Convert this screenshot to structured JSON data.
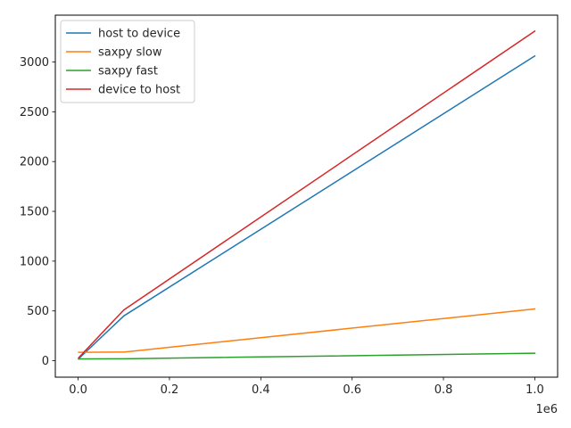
{
  "chart_data": {
    "type": "line",
    "title": "",
    "xlabel": "",
    "ylabel": "",
    "x_offset_label": "1e6",
    "xlim": [
      -50000,
      1050000
    ],
    "ylim": [
      -165,
      3470
    ],
    "x_ticks": [
      0,
      200000,
      400000,
      600000,
      800000,
      1000000
    ],
    "x_tick_labels": [
      "0.0",
      "0.2",
      "0.4",
      "0.6",
      "0.8",
      "1.0"
    ],
    "y_ticks": [
      0,
      500,
      1000,
      1500,
      2000,
      2500,
      3000
    ],
    "y_tick_labels": [
      "0",
      "500",
      "1000",
      "1500",
      "2000",
      "2500",
      "3000"
    ],
    "grid": false,
    "legend_position": "top-left",
    "x": [
      1000,
      100000,
      1000000
    ],
    "series": [
      {
        "name": "host to device",
        "color": "#1f77b4",
        "values": [
          20,
          450,
          3060
        ]
      },
      {
        "name": "saxpy slow",
        "color": "#ff7f0e",
        "values": [
          85,
          87,
          520
        ]
      },
      {
        "name": "saxpy fast",
        "color": "#2ca02c",
        "values": [
          18,
          20,
          75
        ]
      },
      {
        "name": "device to host",
        "color": "#d62728",
        "values": [
          30,
          510,
          3310
        ]
      }
    ]
  }
}
